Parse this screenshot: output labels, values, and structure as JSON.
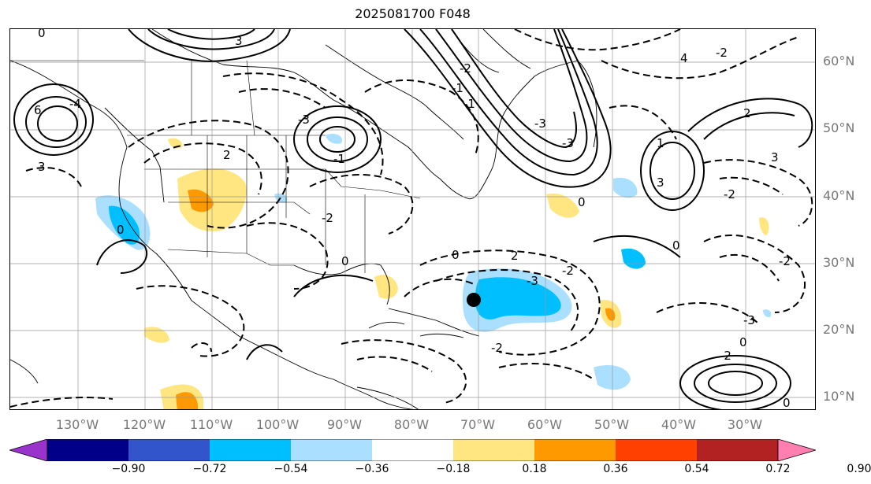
{
  "title": "2025081700 F048",
  "lat_labels": [
    "60°N",
    "50°N",
    "40°N",
    "30°N",
    "20°N",
    "10°N"
  ],
  "lon_labels": [
    "130°W",
    "120°W",
    "110°W",
    "100°W",
    "90°W",
    "80°W",
    "70°W",
    "60°W",
    "50°W",
    "40°W",
    "30°W"
  ],
  "colorbar": {
    "ticks": [
      "−0.90",
      "−0.72",
      "−0.54",
      "−0.36",
      "−0.18",
      "0.18",
      "0.36",
      "0.54",
      "0.72",
      "0.90"
    ],
    "colors": [
      "#9933cc",
      "#000088",
      "#3355cc",
      "#00bfff",
      "#aadfff",
      "#ffffff",
      "#ffe680",
      "#ff9900",
      "#ff4000",
      "#b22222",
      "#ff80b0"
    ]
  },
  "contour_labels": [
    "3",
    "6",
    "-4",
    "3",
    "-3",
    "-1",
    "0",
    "2",
    "-2",
    "-1",
    "-3",
    "0",
    "0",
    "2",
    "0",
    "-2",
    "-3",
    "2",
    "0",
    "3",
    "4",
    "-2",
    "-2",
    "3",
    "-3",
    "1",
    "-3",
    "0",
    "-2",
    "-2",
    "-2",
    "-2",
    "-1",
    "0",
    "0"
  ],
  "storm_marker": "storm-center"
}
